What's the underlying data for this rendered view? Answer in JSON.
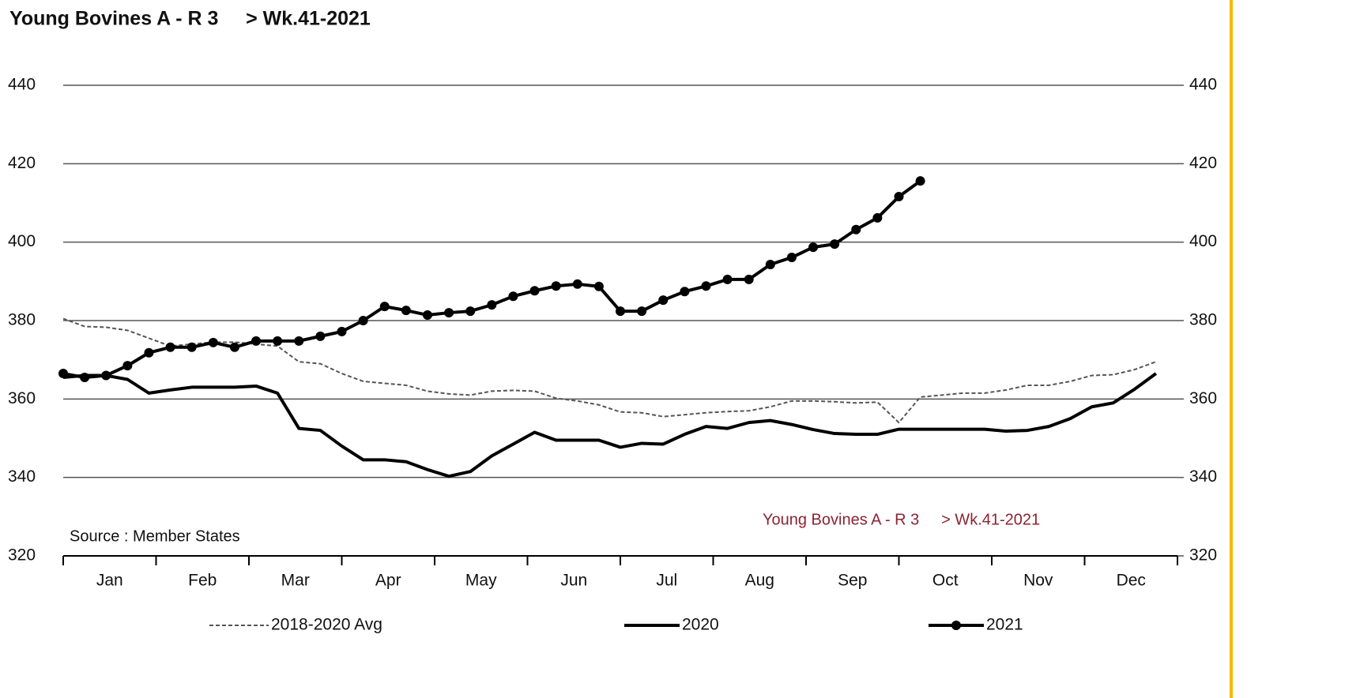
{
  "chart_data": {
    "type": "line",
    "title": "Young Bovines A - R 3     > Wk.41-2021",
    "annotations": [
      "Source : Member States",
      "Young Bovines A - R 3     > Wk.41-2021"
    ],
    "month_labels": [
      "Jan",
      "Feb",
      "Mar",
      "Apr",
      "May",
      "Jun",
      "Jul",
      "Aug",
      "Sep",
      "Oct",
      "Nov",
      "Dec"
    ],
    "x": [
      1,
      2,
      3,
      4,
      5,
      6,
      7,
      8,
      9,
      10,
      11,
      12,
      13,
      14,
      15,
      16,
      17,
      18,
      19,
      20,
      21,
      22,
      23,
      24,
      25,
      26,
      27,
      28,
      29,
      30,
      31,
      32,
      33,
      34,
      35,
      36,
      37,
      38,
      39,
      40,
      41,
      42,
      43,
      44,
      45,
      46,
      47,
      48,
      49,
      50,
      51,
      52
    ],
    "xlim": [
      1,
      53
    ],
    "ylim": [
      320,
      440
    ],
    "yticks": [
      320,
      340,
      360,
      380,
      400,
      420,
      440
    ],
    "y2lim": [
      320,
      440
    ],
    "y2ticks": [
      320,
      340,
      360,
      380,
      400,
      420,
      440
    ],
    "grid": true,
    "legend": "bottom",
    "series": [
      {
        "name": "2018-2020 Avg",
        "color": "#555555",
        "style": "dashed",
        "values": [
          380.5,
          378.5,
          378.3,
          377.5,
          375.5,
          373.5,
          374,
          374.5,
          374.5,
          374,
          373.5,
          369.5,
          369,
          366.5,
          364.5,
          364,
          363.5,
          362,
          361.3,
          361,
          362,
          362.2,
          362,
          360.2,
          359.5,
          358.5,
          356.7,
          356.5,
          355.5,
          356,
          356.5,
          356.8,
          357,
          358,
          359.5,
          359.5,
          359.3,
          359,
          359.2,
          354,
          360.5,
          361,
          361.5,
          361.5,
          362.3,
          363.5,
          363.5,
          364.5,
          366,
          366.2,
          367.5,
          369.5
        ]
      },
      {
        "name": "2020",
        "color": "#000000",
        "style": "solid",
        "values": [
          365.5,
          366,
          366,
          365,
          361.5,
          362.3,
          363,
          363,
          363,
          363.3,
          361.5,
          352.5,
          352,
          348,
          344.5,
          344.5,
          344,
          342,
          340.3,
          341.5,
          345.5,
          348.5,
          351.5,
          349.5,
          349.5,
          349.5,
          347.7,
          348.7,
          348.5,
          351,
          353,
          352.5,
          354,
          354.5,
          353.5,
          352.2,
          351.2,
          351,
          351,
          352.3,
          352.3,
          352.3,
          352.3,
          352.3,
          351.8,
          352,
          353,
          355,
          358,
          359,
          362.5,
          366.5
        ]
      },
      {
        "name": "2021",
        "color": "#000000",
        "style": "markers",
        "values": [
          366.5,
          365.5,
          366,
          368.5,
          371.8,
          373.2,
          373.2,
          374.4,
          373.2,
          374.8,
          374.8,
          374.8,
          376,
          377.2,
          380,
          383.6,
          382.6,
          381.4,
          382,
          382.4,
          384,
          386.2,
          387.6,
          388.8,
          389.3,
          388.7,
          382.4,
          382.4,
          385.2,
          387.4,
          388.8,
          390.5,
          390.5,
          394.3,
          396.1,
          398.7,
          399.5,
          403.2,
          406.2,
          411.6,
          415.6,
          null,
          null,
          null,
          null,
          null,
          null,
          null,
          null,
          null,
          null,
          null
        ]
      }
    ]
  }
}
